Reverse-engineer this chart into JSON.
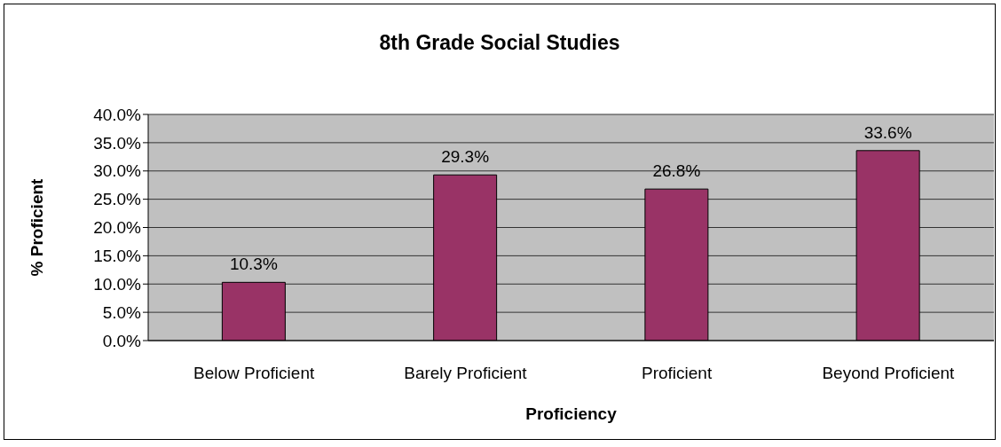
{
  "chart_data": {
    "type": "bar",
    "title": "8th Grade Social Studies",
    "xlabel": "Proficiency",
    "ylabel": "% Proficient",
    "categories": [
      "Below Proficient",
      "Barely Proficient",
      "Proficient",
      "Beyond Proficient"
    ],
    "values": [
      10.3,
      29.3,
      26.8,
      33.6
    ],
    "color": "#993366",
    "value_labels": [
      "10.3%",
      "29.3%",
      "26.8%",
      "33.6%"
    ],
    "ylim": [
      0,
      40
    ],
    "yticks": [
      {
        "value": 0,
        "label": "0.0%"
      },
      {
        "value": 5,
        "label": "5.0%"
      },
      {
        "value": 10,
        "label": "10.0%"
      },
      {
        "value": 15,
        "label": "15.0%"
      },
      {
        "value": 20,
        "label": "20.0%"
      },
      {
        "value": 25,
        "label": "25.0%"
      },
      {
        "value": 30,
        "label": "30.0%"
      },
      {
        "value": 35,
        "label": "35.0%"
      },
      {
        "value": 40,
        "label": "40.0%"
      }
    ],
    "grid": "y",
    "legend": false
  }
}
